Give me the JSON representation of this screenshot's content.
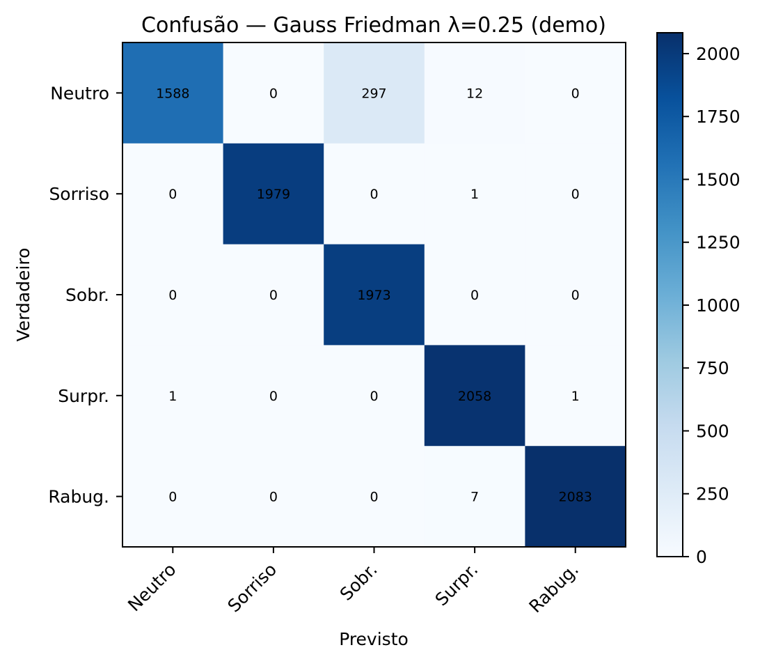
{
  "chart_data": {
    "type": "heatmap",
    "title": "Confusão — Gauss Friedman λ=0.25 (demo)",
    "xlabel": "Previsto",
    "ylabel": "Verdadeiro",
    "x_categories": [
      "Neutro",
      "Sorriso",
      "Sobr.",
      "Surpr.",
      "Rabug."
    ],
    "y_categories": [
      "Neutro",
      "Sorriso",
      "Sobr.",
      "Surpr.",
      "Rabug."
    ],
    "values": [
      [
        1588,
        0,
        297,
        12,
        0
      ],
      [
        0,
        1979,
        0,
        1,
        0
      ],
      [
        0,
        0,
        1973,
        0,
        0
      ],
      [
        1,
        0,
        0,
        2058,
        1
      ],
      [
        0,
        0,
        0,
        7,
        2083
      ]
    ],
    "colormap": "Blues",
    "colorbar": {
      "range": [
        0,
        2083
      ],
      "ticks": [
        0,
        250,
        500,
        750,
        1000,
        1250,
        1500,
        1750,
        2000
      ]
    },
    "colors": {
      "cell_low": "#f7fbff",
      "cell_high": "#08306b",
      "frame": "#000000"
    }
  }
}
